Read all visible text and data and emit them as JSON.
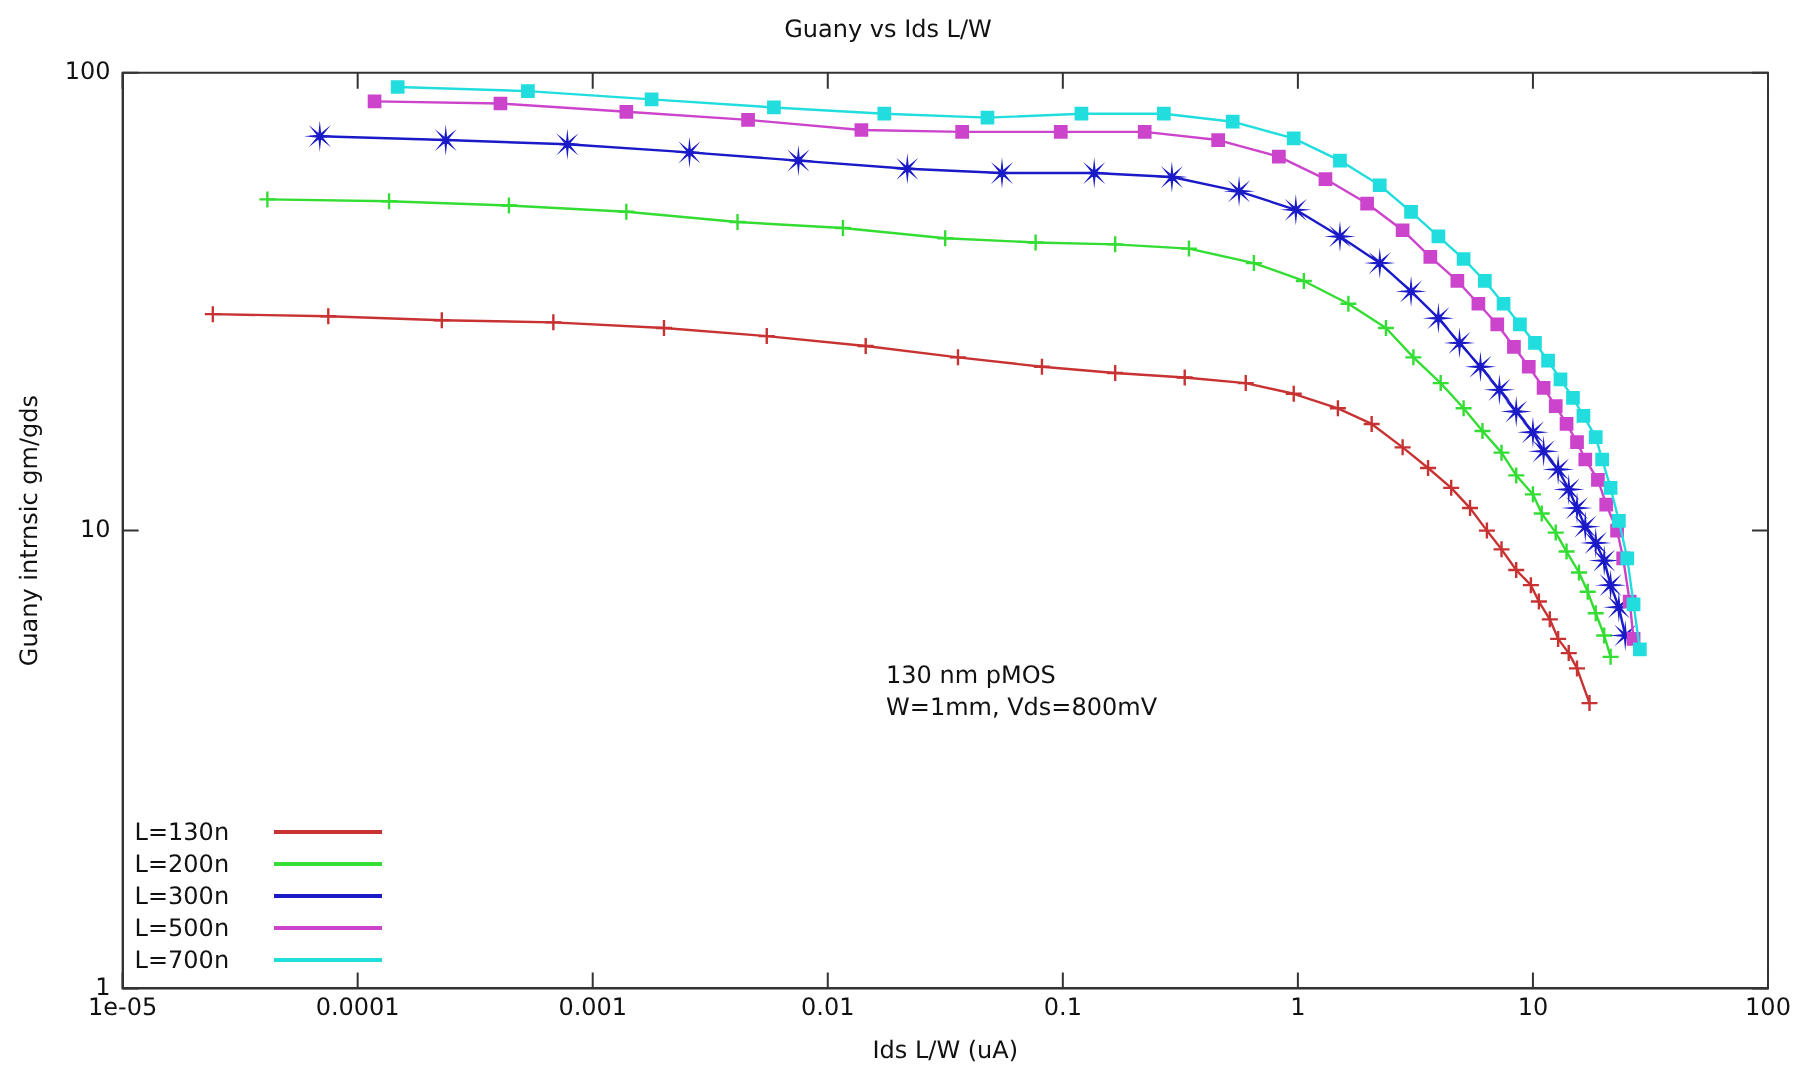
{
  "chart_data": {
    "type": "line",
    "title": "Guany vs Ids L/W",
    "xlabel": "Ids L/W (uA)",
    "ylabel": "Guany intrnsic gm/gds",
    "log": "xy",
    "grid": false,
    "legend": "bottom left",
    "line_style": "solid",
    "xlim": [
      1e-05,
      100
    ],
    "ylim": [
      1,
      100
    ],
    "xticks": [
      {
        "value": 1e-05,
        "label": "1e-05"
      },
      0.0001,
      0.001,
      0.01,
      0.1,
      1,
      10,
      100
    ],
    "yticks": [
      1,
      10,
      100
    ],
    "annotations": [
      "130 nm pMOS",
      "W=1mm, Vds=800mV"
    ],
    "series": [
      {
        "name": "L=130n",
        "color": "#c83232",
        "marker": "cross",
        "x": [
          2.42e-05,
          7.5e-05,
          0.000228,
          0.00068,
          0.00201,
          0.0055,
          0.0145,
          0.0358,
          0.0815,
          0.167,
          0.33,
          0.6,
          0.96,
          1.48,
          2.06,
          2.79,
          3.58,
          4.49,
          5.4,
          6.37,
          7.35,
          8.49,
          9.8,
          10.6,
          11.8,
          12.8,
          14.2,
          15.4,
          17.4
        ],
        "values": [
          29.7,
          29.4,
          28.8,
          28.5,
          27.7,
          26.6,
          25.3,
          23.9,
          22.8,
          22.1,
          21.6,
          21.0,
          19.9,
          18.5,
          17.1,
          15.2,
          13.7,
          12.4,
          11.2,
          10.0,
          9.1,
          8.2,
          7.6,
          7.0,
          6.4,
          5.8,
          5.4,
          5.0,
          4.2
        ]
      },
      {
        "name": "L=200n",
        "color": "#33dd33",
        "marker": "cross",
        "x": [
          4.13e-05,
          0.000136,
          0.00044,
          0.00139,
          0.00413,
          0.0116,
          0.0316,
          0.0766,
          0.167,
          0.344,
          0.65,
          1.06,
          1.64,
          2.37,
          3.1,
          4.05,
          5.07,
          6.1,
          7.35,
          8.49,
          10.0,
          10.9,
          12.5,
          13.9,
          15.7,
          17.1,
          18.5,
          20.1,
          21.4
        ],
        "values": [
          52.9,
          52.4,
          51.3,
          49.7,
          47.2,
          45.8,
          43.5,
          42.6,
          42.2,
          41.3,
          38.4,
          35.1,
          31.3,
          27.7,
          23.9,
          21.0,
          18.5,
          16.5,
          14.8,
          13.2,
          12.0,
          10.9,
          9.9,
          9.0,
          8.1,
          7.35,
          6.6,
          5.9,
          5.3
        ]
      },
      {
        "name": "L=300n",
        "color": "#1a1ac8",
        "marker": "star",
        "x": [
          6.9e-05,
          0.000237,
          0.00078,
          0.00258,
          0.0075,
          0.0218,
          0.0551,
          0.136,
          0.291,
          0.562,
          0.98,
          1.51,
          2.23,
          3.03,
          3.96,
          4.87,
          5.98,
          7.2,
          8.49,
          10.0,
          11.1,
          12.8,
          14.2,
          15.4,
          16.7,
          18.5,
          20.1,
          21.4,
          23.2,
          24.7
        ],
        "values": [
          72.7,
          71.3,
          69.8,
          67.0,
          64.3,
          61.7,
          60.4,
          60.4,
          59.2,
          55.1,
          50.2,
          43.9,
          38.4,
          33.3,
          29.1,
          25.7,
          22.8,
          20.3,
          18.2,
          16.4,
          14.9,
          13.6,
          12.3,
          11.2,
          10.2,
          9.4,
          8.6,
          7.6,
          6.8,
          5.9
        ]
      },
      {
        "name": "L=500n",
        "color": "#cc44cc",
        "marker": "square",
        "x": [
          0.000118,
          0.000405,
          0.00139,
          0.00458,
          0.0139,
          0.0373,
          0.098,
          0.223,
          0.458,
          0.83,
          1.31,
          1.97,
          2.79,
          3.66,
          4.77,
          5.86,
          7.05,
          8.3,
          9.6,
          11.1,
          12.5,
          13.9,
          15.4,
          16.7,
          18.9,
          20.5,
          22.8,
          24.2,
          25.8,
          26.8
        ],
        "values": [
          86.6,
          85.7,
          82.2,
          78.9,
          75.0,
          74.3,
          74.3,
          74.3,
          71.3,
          65.6,
          58.6,
          51.8,
          45.3,
          39.6,
          35.1,
          31.3,
          28.2,
          25.2,
          22.8,
          20.5,
          18.7,
          17.1,
          15.6,
          14.3,
          12.9,
          11.4,
          10.0,
          8.7,
          7.0,
          5.8
        ]
      },
      {
        "name": "L=700n",
        "color": "#22dddd",
        "marker": "square",
        "x": [
          0.000148,
          0.00053,
          0.00178,
          0.0059,
          0.0174,
          0.0478,
          0.12,
          0.269,
          0.528,
          0.96,
          1.51,
          2.23,
          3.03,
          3.96,
          5.07,
          6.24,
          7.5,
          8.8,
          10.2,
          11.6,
          13.1,
          14.8,
          16.4,
          18.5,
          19.7,
          21.4,
          23.2,
          25.2,
          26.8,
          28.5
        ],
        "values": [
          93.1,
          91.2,
          87.5,
          84.0,
          81.4,
          79.8,
          81.4,
          81.4,
          78.2,
          71.9,
          64.3,
          56.8,
          49.7,
          43.9,
          39.2,
          35.1,
          31.3,
          28.2,
          25.7,
          23.5,
          21.4,
          19.5,
          17.8,
          16.0,
          14.3,
          12.4,
          10.5,
          8.7,
          6.9,
          5.5
        ]
      }
    ]
  }
}
